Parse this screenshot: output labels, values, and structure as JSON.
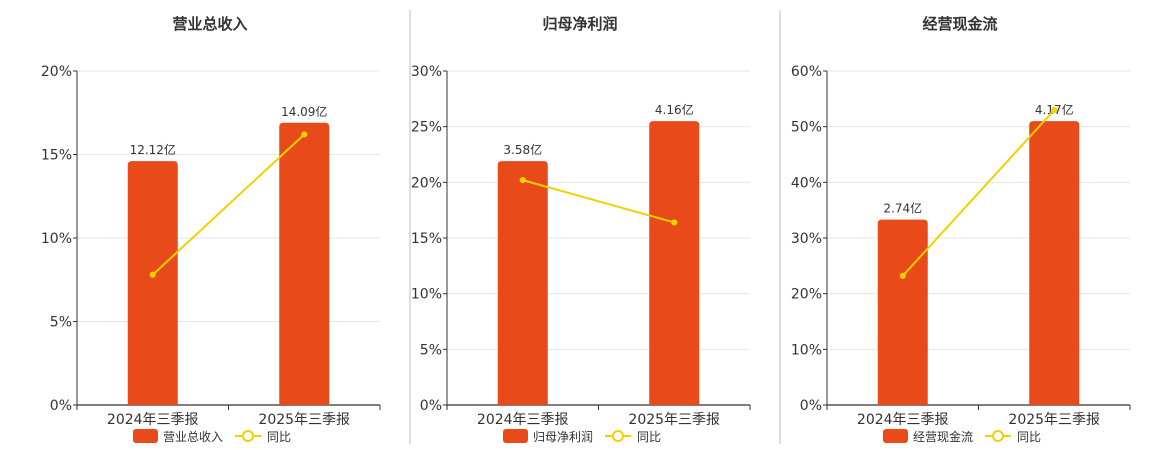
{
  "colors": {
    "bar": "#e84a1a",
    "line": "#f2d100",
    "grid": "#e6e6e6",
    "axis": "#333333",
    "divider": "#bbbbbb"
  },
  "chart_data": [
    {
      "type": "bar",
      "title": "营业总收入",
      "categories": [
        "2024年三季报",
        "2025年三季报"
      ],
      "ylim": [
        0,
        20
      ],
      "yticks": [
        0,
        5,
        10,
        15,
        20
      ],
      "ytick_labels": [
        "0%",
        "5%",
        "10%",
        "15%",
        "20%"
      ],
      "series": [
        {
          "name": "营业总收入",
          "kind": "bar",
          "values": [
            14.6,
            16.9
          ],
          "labels": [
            "12.12亿",
            "14.09亿"
          ]
        },
        {
          "name": "同比",
          "kind": "line",
          "values": [
            7.8,
            16.2
          ]
        }
      ],
      "legend": "bottom",
      "grid": true
    },
    {
      "type": "bar",
      "title": "归母净利润",
      "categories": [
        "2024年三季报",
        "2025年三季报"
      ],
      "ylim": [
        0,
        30
      ],
      "yticks": [
        0,
        5,
        10,
        15,
        20,
        25,
        30
      ],
      "ytick_labels": [
        "0%",
        "5%",
        "10%",
        "15%",
        "20%",
        "25%",
        "30%"
      ],
      "series": [
        {
          "name": "归母净利润",
          "kind": "bar",
          "values": [
            21.9,
            25.5
          ],
          "labels": [
            "3.58亿",
            "4.16亿"
          ]
        },
        {
          "name": "同比",
          "kind": "line",
          "values": [
            20.2,
            16.4
          ]
        }
      ],
      "legend": "bottom",
      "grid": true
    },
    {
      "type": "bar",
      "title": "经营现金流",
      "categories": [
        "2024年三季报",
        "2025年三季报"
      ],
      "ylim": [
        0,
        60
      ],
      "yticks": [
        0,
        10,
        20,
        30,
        40,
        50,
        60
      ],
      "ytick_labels": [
        "0%",
        "10%",
        "20%",
        "30%",
        "40%",
        "50%",
        "60%"
      ],
      "series": [
        {
          "name": "经营现金流",
          "kind": "bar",
          "values": [
            33.3,
            51.0
          ],
          "labels": [
            "2.74亿",
            "4.17亿"
          ]
        },
        {
          "name": "同比",
          "kind": "line",
          "values": [
            23.2,
            53.0
          ]
        }
      ],
      "legend": "bottom",
      "grid": true
    }
  ]
}
